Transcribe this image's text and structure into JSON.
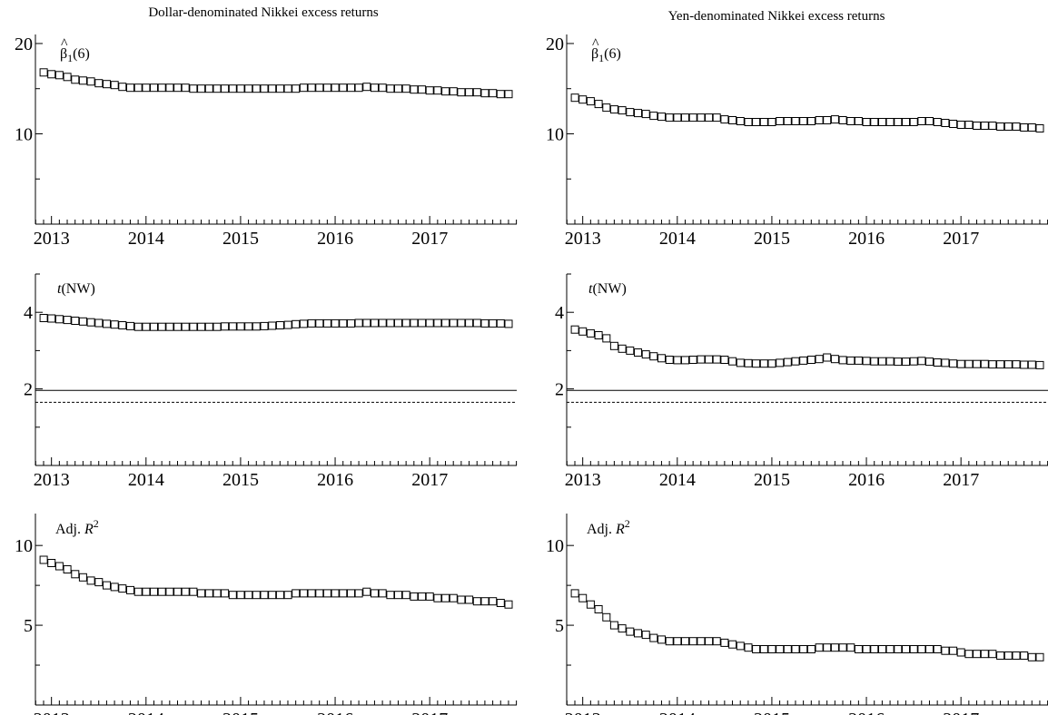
{
  "column_titles": [
    "Dollar-denominated Nikkei excess returns",
    "Yen-denominated Nikkei excess returns"
  ],
  "x_tick_labels": [
    "2013",
    "2014",
    "2015",
    "2016",
    "2017"
  ],
  "chart_data": [
    {
      "type": "line",
      "column": 0,
      "row": 0,
      "label": "β̂1(6)",
      "ylim": [
        0,
        21
      ],
      "yticks": [
        10,
        20
      ],
      "xlim": [
        2012.83,
        2017.92
      ],
      "marker": "square",
      "series": [
        {
          "start": 2012.917,
          "step": 0.0833333,
          "values": [
            16.8,
            16.6,
            16.5,
            16.3,
            16.0,
            15.9,
            15.8,
            15.6,
            15.5,
            15.4,
            15.2,
            15.1,
            15.1,
            15.1,
            15.1,
            15.1,
            15.1,
            15.1,
            15.1,
            15.0,
            15.0,
            15.0,
            15.0,
            15.0,
            15.0,
            15.0,
            15.0,
            15.0,
            15.0,
            15.0,
            15.0,
            15.0,
            15.0,
            15.1,
            15.1,
            15.1,
            15.1,
            15.1,
            15.1,
            15.1,
            15.1,
            15.2,
            15.1,
            15.1,
            15.0,
            15.0,
            15.0,
            14.9,
            14.9,
            14.8,
            14.8,
            14.7,
            14.7,
            14.6,
            14.6,
            14.6,
            14.5,
            14.5,
            14.4,
            14.4
          ]
        }
      ]
    },
    {
      "type": "line",
      "column": 1,
      "row": 0,
      "label": "β̂1(6)",
      "ylim": [
        0,
        21
      ],
      "yticks": [
        10,
        20
      ],
      "xlim": [
        2012.83,
        2017.92
      ],
      "marker": "square",
      "series": [
        {
          "start": 2012.917,
          "step": 0.0833333,
          "values": [
            14.0,
            13.8,
            13.6,
            13.3,
            12.9,
            12.7,
            12.6,
            12.4,
            12.3,
            12.2,
            12.0,
            11.9,
            11.8,
            11.8,
            11.8,
            11.8,
            11.8,
            11.8,
            11.8,
            11.6,
            11.5,
            11.4,
            11.3,
            11.3,
            11.3,
            11.3,
            11.4,
            11.4,
            11.4,
            11.4,
            11.4,
            11.5,
            11.5,
            11.6,
            11.5,
            11.4,
            11.4,
            11.3,
            11.3,
            11.3,
            11.3,
            11.3,
            11.3,
            11.3,
            11.4,
            11.4,
            11.3,
            11.2,
            11.1,
            11.0,
            11.0,
            10.9,
            10.9,
            10.9,
            10.8,
            10.8,
            10.8,
            10.7,
            10.7,
            10.6
          ]
        }
      ]
    },
    {
      "type": "line",
      "column": 0,
      "row": 1,
      "label": "t(NW)",
      "ylim": [
        0,
        5
      ],
      "yticks": [
        2,
        4
      ],
      "xlim": [
        2012.83,
        2017.92
      ],
      "marker": "square",
      "reference_lines": [
        {
          "y": 1.96,
          "style": "solid"
        },
        {
          "y": 1.65,
          "style": "dotted"
        }
      ],
      "series": [
        {
          "start": 2012.917,
          "step": 0.0833333,
          "values": [
            3.85,
            3.84,
            3.82,
            3.8,
            3.78,
            3.76,
            3.74,
            3.72,
            3.7,
            3.68,
            3.66,
            3.64,
            3.62,
            3.62,
            3.62,
            3.62,
            3.62,
            3.62,
            3.62,
            3.62,
            3.62,
            3.62,
            3.62,
            3.63,
            3.63,
            3.63,
            3.63,
            3.63,
            3.64,
            3.65,
            3.66,
            3.67,
            3.69,
            3.7,
            3.71,
            3.71,
            3.71,
            3.71,
            3.71,
            3.71,
            3.72,
            3.72,
            3.72,
            3.72,
            3.72,
            3.72,
            3.72,
            3.72,
            3.72,
            3.72,
            3.72,
            3.72,
            3.72,
            3.72,
            3.72,
            3.72,
            3.71,
            3.71,
            3.71,
            3.7
          ]
        }
      ]
    },
    {
      "type": "line",
      "column": 1,
      "row": 1,
      "label": "t(NW)",
      "ylim": [
        0,
        5
      ],
      "yticks": [
        2,
        4
      ],
      "xlim": [
        2012.83,
        2017.92
      ],
      "marker": "square",
      "reference_lines": [
        {
          "y": 1.96,
          "style": "solid"
        },
        {
          "y": 1.65,
          "style": "dotted"
        }
      ],
      "series": [
        {
          "start": 2012.917,
          "step": 0.0833333,
          "values": [
            3.55,
            3.5,
            3.45,
            3.4,
            3.32,
            3.12,
            3.05,
            3.0,
            2.95,
            2.9,
            2.85,
            2.8,
            2.76,
            2.75,
            2.75,
            2.76,
            2.77,
            2.77,
            2.77,
            2.76,
            2.72,
            2.68,
            2.67,
            2.66,
            2.66,
            2.66,
            2.68,
            2.7,
            2.72,
            2.74,
            2.76,
            2.78,
            2.82,
            2.78,
            2.75,
            2.74,
            2.74,
            2.73,
            2.72,
            2.72,
            2.72,
            2.71,
            2.71,
            2.72,
            2.73,
            2.71,
            2.69,
            2.68,
            2.66,
            2.65,
            2.65,
            2.65,
            2.65,
            2.64,
            2.64,
            2.64,
            2.64,
            2.63,
            2.63,
            2.62
          ]
        }
      ]
    },
    {
      "type": "line",
      "column": 0,
      "row": 2,
      "label": "Adj. R2",
      "ylim": [
        0,
        12
      ],
      "yticks": [
        5,
        10
      ],
      "xlim": [
        2012.83,
        2017.92
      ],
      "marker": "square",
      "series": [
        {
          "start": 2012.917,
          "step": 0.0833333,
          "values": [
            9.1,
            8.9,
            8.7,
            8.5,
            8.2,
            8.0,
            7.8,
            7.7,
            7.5,
            7.4,
            7.3,
            7.2,
            7.1,
            7.1,
            7.1,
            7.1,
            7.1,
            7.1,
            7.1,
            7.1,
            7.0,
            7.0,
            7.0,
            7.0,
            6.9,
            6.9,
            6.9,
            6.9,
            6.9,
            6.9,
            6.9,
            6.9,
            7.0,
            7.0,
            7.0,
            7.0,
            7.0,
            7.0,
            7.0,
            7.0,
            7.0,
            7.1,
            7.0,
            7.0,
            6.9,
            6.9,
            6.9,
            6.8,
            6.8,
            6.8,
            6.7,
            6.7,
            6.7,
            6.6,
            6.6,
            6.5,
            6.5,
            6.5,
            6.4,
            6.3
          ]
        }
      ]
    },
    {
      "type": "line",
      "column": 1,
      "row": 2,
      "label": "Adj. R2",
      "ylim": [
        0,
        12
      ],
      "yticks": [
        5,
        10
      ],
      "xlim": [
        2012.83,
        2017.92
      ],
      "marker": "square",
      "series": [
        {
          "start": 2012.917,
          "step": 0.0833333,
          "values": [
            7.0,
            6.7,
            6.3,
            6.0,
            5.5,
            5.0,
            4.8,
            4.6,
            4.5,
            4.4,
            4.2,
            4.1,
            4.0,
            4.0,
            4.0,
            4.0,
            4.0,
            4.0,
            4.0,
            3.9,
            3.8,
            3.7,
            3.6,
            3.5,
            3.5,
            3.5,
            3.5,
            3.5,
            3.5,
            3.5,
            3.5,
            3.6,
            3.6,
            3.6,
            3.6,
            3.6,
            3.5,
            3.5,
            3.5,
            3.5,
            3.5,
            3.5,
            3.5,
            3.5,
            3.5,
            3.5,
            3.5,
            3.4,
            3.4,
            3.3,
            3.2,
            3.2,
            3.2,
            3.2,
            3.1,
            3.1,
            3.1,
            3.1,
            3.0,
            3.0
          ]
        }
      ]
    }
  ]
}
